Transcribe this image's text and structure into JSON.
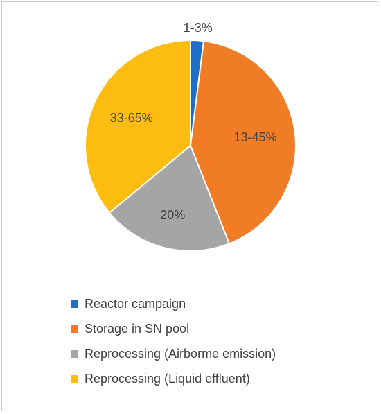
{
  "chart_data": {
    "type": "pie",
    "slices": [
      {
        "name": "Reactor campaign",
        "label": "1-3%",
        "value": 2,
        "color": "#1f6fc6"
      },
      {
        "name": "Storage in SN pool",
        "label": "13-45%",
        "value": 42,
        "color": "#f07d25"
      },
      {
        "name": "Reprocessing (Airborme emission)",
        "label": "20%",
        "value": 20,
        "color": "#a5a5a5"
      },
      {
        "name": "Reprocessing (Liquid effluent)",
        "label": "33-65%",
        "value": 36,
        "color": "#fdbd10"
      }
    ],
    "start_angle_deg": 0,
    "direction": "clockwise",
    "legend_position": "bottom"
  }
}
